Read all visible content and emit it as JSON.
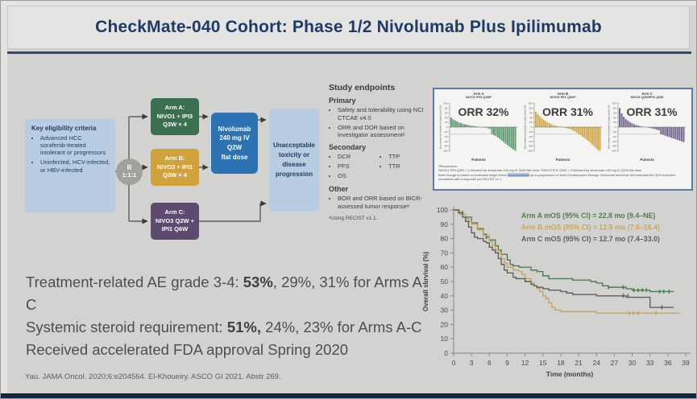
{
  "slide": {
    "title": "CheckMate-040 Cohort: Phase 1/2 Nivolumab Plus Ipilimumab",
    "citation": "Yau. JAMA Oncol. 2020;6:e204564. El-Khoueiry. ASCO GI 2021. Abstr 269."
  },
  "colors": {
    "title_navy": "#1e3a66",
    "arm_a_green": "#3a7050",
    "arm_b_gold": "#d2a23c",
    "arm_c_purple": "#5c4a71",
    "nivolumab_blue": "#2d72b2",
    "light_blue_box": "#b9cde2",
    "randomization_gray": "#a1a19e",
    "waterfall_green": "#5f9c74",
    "waterfall_gold": "#d1a84b",
    "waterfall_purple": "#796a94",
    "km_green": "#4f7d54",
    "km_gold": "#cda455",
    "km_gray": "#5f5f5f"
  },
  "flowchart": {
    "eligibility": {
      "title": "Key eligibility criteria",
      "bullets": [
        "Advanced HCC sorafenib-treated intolerant or progressors",
        "Uninfected, HCV-infected, or HBV-infected"
      ]
    },
    "randomization": {
      "label": "R",
      "ratio": "1:1:1"
    },
    "arms": [
      {
        "name": "Arm A:",
        "line2": "NIVO1 + IPI3",
        "line3": "Q3W × 4"
      },
      {
        "name": "Arm B:",
        "line2": "NIVO3 + IPI1",
        "line3": "Q3W × 4"
      },
      {
        "name": "Arm C:",
        "line2": "NIVO3 Q2W +",
        "line3": "IPI1 Q6W"
      }
    ],
    "maintenance": {
      "lines": [
        "Nivolumab",
        "240 mg IV",
        "Q2W",
        "flat dose"
      ]
    },
    "endpoint_box": "Unacceptable toxicity or disease progression"
  },
  "endpoints": {
    "title": "Study endpoints",
    "primary_label": "Primary",
    "primary": [
      "Safety and tolerability using NCI CTCAE v4.0",
      "ORR and DOR based on investigator assessmentᵃ"
    ],
    "secondary_label": "Secondary",
    "secondary_col1": [
      "DCR",
      "PFS",
      "OS"
    ],
    "secondary_col2": [
      "TTP",
      "TTR"
    ],
    "other_label": "Other",
    "other": [
      "BOR and ORR based on BICR-assessed tumor responseᵃ"
    ],
    "footnote": "ᵃUsing RECIST v1.1."
  },
  "waterfall_panel": {
    "footnote1": "ᵃResponders.",
    "footnote2": "ᵃNIVO1 IPI3 Q3W = 4 followed by nivolumab 240 mg IV Q2W flat dose; ᵇNIVO3 IPI1 Q3W = 4 followed by nivolumab 240 mg IV Q2W flat dose.",
    "footnote3_pre": "Best change is based on evaluable target lesion ",
    "footnote3_hl": "measurements",
    "footnote3_post": " up to progression or start of subsequent therapy. Horizontal reference line indicates the 30% reduction consistent with a response per RECIST v1.1."
  },
  "ae": {
    "line1_pre": "Treatment-related AE grade 3-4: ",
    "line1_bold": "53%",
    "line1_post": ", 29%, 31% for Arms A-C",
    "line2_pre": "Systemic steroid requirement: ",
    "line2_bold": "51%,",
    "line2_post": " 24%, 23% for Arms A-C",
    "line3": "Received accelerated FDA approval Spring 2020"
  },
  "chart_data": [
    {
      "id": "wf_a",
      "type": "bar",
      "subtype": "waterfall",
      "arm_title": "Arm A",
      "arm_subtitle": "NIVO1 IPI3 Q3Wᵃ",
      "orr_label": "ORR 32%",
      "color": "#5f9c74",
      "xlabel": "Patients",
      "ylabel": "Best change from baseline in target lesions (%)",
      "ylim": [
        -100,
        100
      ],
      "reference_line": -30,
      "values": [
        40,
        33,
        28,
        24,
        20,
        17,
        14,
        12,
        10,
        8,
        6,
        5,
        4,
        3,
        2,
        1,
        -1,
        -2,
        -3,
        -5,
        -8,
        -30,
        -34,
        -38,
        -44,
        -50,
        -57,
        -63,
        -70,
        -76,
        -83,
        -89,
        -95,
        -100
      ]
    },
    {
      "id": "wf_b",
      "type": "bar",
      "subtype": "waterfall",
      "arm_title": "Arm B",
      "arm_subtitle": "NIVO3 IPI1 Q3Wᵇ",
      "orr_label": "ORR 31%",
      "color": "#d1a84b",
      "xlabel": "Patients",
      "ylabel": "Best change from baseline in target lesions (%)",
      "ylim": [
        -100,
        100
      ],
      "reference_line": -30,
      "values": [
        65,
        55,
        46,
        38,
        31,
        25,
        20,
        16,
        12,
        9,
        6,
        4,
        2,
        1,
        -1,
        -3,
        -5,
        -7,
        -10,
        -14,
        -18,
        -23,
        -28,
        -34,
        -40,
        -46,
        -52,
        -58,
        -65,
        -73,
        -81,
        -89,
        -96,
        -100
      ]
    },
    {
      "id": "wf_c",
      "type": "bar",
      "subtype": "waterfall",
      "arm_title": "Arm C",
      "arm_subtitle": "NIVO3 Q2W/IPI1 Q6W",
      "orr_label": "ORR 31%",
      "color": "#796a94",
      "xlabel": "Patients",
      "ylabel": "Best change from baseline in target lesions (%)",
      "ylim": [
        -100,
        100
      ],
      "reference_line": -30,
      "values": [
        80,
        58,
        44,
        34,
        27,
        21,
        16,
        12,
        9,
        6,
        4,
        2,
        1,
        -1,
        -2,
        -4,
        -6,
        -8,
        -11,
        -14,
        -30,
        -33,
        -36,
        -39,
        -42,
        -45,
        -48,
        -51,
        -54,
        -57,
        -60,
        -63
      ]
    },
    {
      "id": "km",
      "type": "line",
      "subtype": "kaplan-meier-step",
      "xlabel": "Time (months)",
      "ylabel": "Overall survival (%)",
      "xlim": [
        0,
        39
      ],
      "ylim": [
        0,
        100
      ],
      "xticks": [
        0,
        3,
        6,
        9,
        12,
        15,
        18,
        21,
        24,
        27,
        30,
        33,
        36,
        39
      ],
      "yticks": [
        0,
        10,
        20,
        30,
        40,
        50,
        60,
        70,
        80,
        90,
        100
      ],
      "legend_position": "top-right",
      "series": [
        {
          "name": "Arm A",
          "label": "Arm A mOS (95% CI) = 22.8 mo (9.4–NE)",
          "color": "#4f7d54",
          "points": [
            [
              0,
              100
            ],
            [
              1,
              98
            ],
            [
              1.5,
              97
            ],
            [
              2,
              95
            ],
            [
              3,
              91
            ],
            [
              4,
              87
            ],
            [
              5,
              83
            ],
            [
              5.5,
              81
            ],
            [
              6,
              79
            ],
            [
              7,
              75
            ],
            [
              7.5,
              72
            ],
            [
              8,
              69
            ],
            [
              9,
              65
            ],
            [
              9.5,
              62
            ],
            [
              10,
              61
            ],
            [
              11,
              60
            ],
            [
              12,
              60
            ],
            [
              13,
              58
            ],
            [
              14,
              57
            ],
            [
              15,
              54
            ],
            [
              16,
              52
            ],
            [
              18,
              52
            ],
            [
              20,
              51
            ],
            [
              23,
              50
            ],
            [
              24,
              49
            ],
            [
              25,
              47
            ],
            [
              26,
              46
            ],
            [
              28,
              46
            ],
            [
              29,
              45
            ],
            [
              30,
              44
            ],
            [
              32,
              44
            ],
            [
              33,
              43
            ],
            [
              36,
              43
            ],
            [
              37,
              43
            ]
          ],
          "censors": [
            [
              1.5,
              98
            ],
            [
              5.5,
              81
            ],
            [
              26,
              46
            ],
            [
              28.5,
              46
            ],
            [
              30.3,
              44
            ],
            [
              31,
              44
            ],
            [
              31.7,
              44
            ],
            [
              32.4,
              44
            ],
            [
              34.6,
              43
            ],
            [
              35.3,
              43
            ],
            [
              36.2,
              43
            ]
          ]
        },
        {
          "name": "Arm B",
          "label": "Arm B mOS (95% CI) = 12.5 mo (7.6–16.4)",
          "color": "#cda455",
          "points": [
            [
              0,
              100
            ],
            [
              1,
              97
            ],
            [
              2,
              94
            ],
            [
              2.5,
              92
            ],
            [
              3,
              90
            ],
            [
              4,
              86
            ],
            [
              5,
              82
            ],
            [
              6,
              78
            ],
            [
              6.5,
              75
            ],
            [
              7,
              72
            ],
            [
              7.5,
              70
            ],
            [
              8,
              66
            ],
            [
              8.5,
              63
            ],
            [
              9,
              60
            ],
            [
              10,
              58
            ],
            [
              11,
              57
            ],
            [
              11.5,
              55
            ],
            [
              12,
              52
            ],
            [
              13,
              49
            ],
            [
              13.5,
              47
            ],
            [
              14,
              45
            ],
            [
              14.5,
              43
            ],
            [
              15,
              40
            ],
            [
              15.5,
              38
            ],
            [
              16,
              35
            ],
            [
              16.5,
              32
            ],
            [
              17,
              30
            ],
            [
              18,
              29
            ],
            [
              21,
              29
            ],
            [
              24,
              28
            ],
            [
              27,
              28
            ],
            [
              30,
              28
            ],
            [
              33,
              28
            ],
            [
              38,
              28
            ]
          ],
          "censors": [
            [
              29.5,
              28
            ],
            [
              30.2,
              28
            ],
            [
              31,
              28
            ],
            [
              34,
              28
            ]
          ]
        },
        {
          "name": "Arm C",
          "label": "Arm C mOS (95% CI) = 12.7 mo (7.4–33.0)",
          "color": "#5f5f5f",
          "points": [
            [
              0,
              100
            ],
            [
              0.8,
              98
            ],
            [
              1.5,
              95
            ],
            [
              2,
              92
            ],
            [
              2.5,
              88
            ],
            [
              3,
              84
            ],
            [
              3.5,
              81
            ],
            [
              4,
              80
            ],
            [
              5,
              78
            ],
            [
              5.5,
              77
            ],
            [
              6,
              74
            ],
            [
              6.5,
              72
            ],
            [
              7,
              70
            ],
            [
              7.5,
              66
            ],
            [
              8,
              62
            ],
            [
              8.5,
              58
            ],
            [
              9,
              56
            ],
            [
              10,
              53
            ],
            [
              10.5,
              52
            ],
            [
              12,
              50
            ],
            [
              13,
              48
            ],
            [
              13.5,
              47
            ],
            [
              14,
              46
            ],
            [
              15,
              45
            ],
            [
              16,
              44
            ],
            [
              18,
              43
            ],
            [
              19,
              42
            ],
            [
              20,
              41
            ],
            [
              22,
              41
            ],
            [
              24,
              40
            ],
            [
              26,
              40
            ],
            [
              28,
              40
            ],
            [
              29,
              39
            ],
            [
              30,
              39
            ],
            [
              33,
              32
            ],
            [
              36,
              32
            ],
            [
              37,
              32
            ]
          ],
          "censors": [
            [
              28.5,
              40
            ],
            [
              29.3,
              40
            ],
            [
              35,
              32
            ]
          ]
        }
      ]
    }
  ]
}
